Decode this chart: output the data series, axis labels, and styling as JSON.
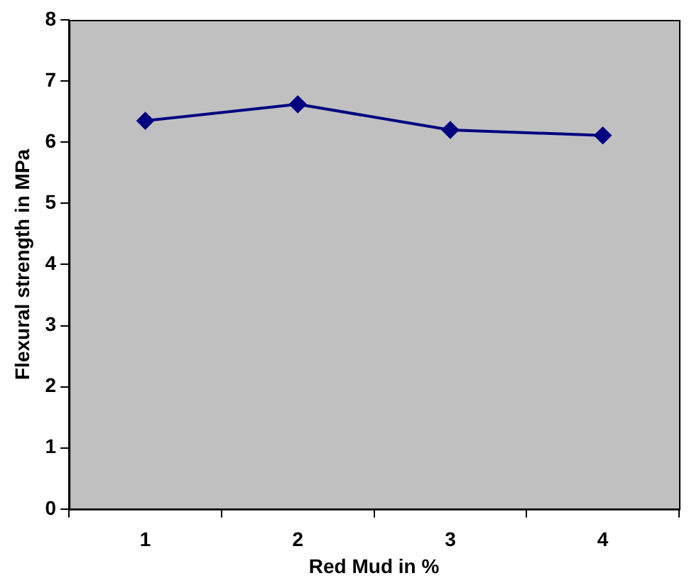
{
  "chart_data": {
    "type": "line",
    "xlabel": "Red Mud in %",
    "ylabel": "Flexural strength in MPa",
    "categories": [
      "1",
      "2",
      "3",
      "4"
    ],
    "series": [
      {
        "color": "#000080",
        "values": [
          6.35,
          6.62,
          6.2,
          6.11
        ]
      }
    ],
    "ylim": [
      0,
      8
    ],
    "yticks": [
      0,
      1,
      2,
      3,
      4,
      5,
      6,
      7,
      8
    ],
    "grid": false,
    "legend": false,
    "marker": "diamond",
    "line_style": "solid"
  }
}
